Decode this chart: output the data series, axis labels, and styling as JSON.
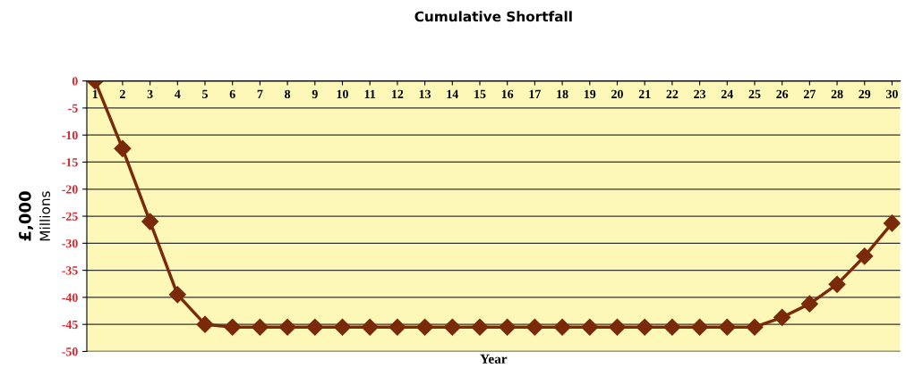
{
  "chart_data": {
    "type": "line",
    "title": "Cumulative Shortfall",
    "xlabel": "Year",
    "ylabel": "£,000",
    "annotations": [
      "Millions"
    ],
    "categories": [
      "1",
      "2",
      "3",
      "4",
      "5",
      "6",
      "7",
      "8",
      "9",
      "10",
      "11",
      "12",
      "13",
      "14",
      "15",
      "16",
      "17",
      "18",
      "19",
      "20",
      "21",
      "22",
      "23",
      "24",
      "25",
      "26",
      "27",
      "28",
      "29",
      "30"
    ],
    "series": [
      {
        "color": "#7a2a08",
        "values": [
          0,
          -12.5,
          -26,
          -39.5,
          -45,
          -45.5,
          -45.5,
          -45.5,
          -45.5,
          -45.5,
          -45.5,
          -45.5,
          -45.5,
          -45.5,
          -45.5,
          -45.5,
          -45.5,
          -45.5,
          -45.5,
          -45.5,
          -45.5,
          -45.5,
          -45.5,
          -45.5,
          -45.5,
          -43.7,
          -41.2,
          -37.6,
          -32.4,
          -26.3
        ]
      }
    ],
    "ylim": [
      -50,
      0
    ],
    "yticks": [
      -50,
      -45,
      -40,
      -35,
      -30,
      -25,
      -20,
      -15,
      -10,
      -5,
      0
    ],
    "grid": "y",
    "marker": "diamond",
    "line_style": "solid"
  }
}
